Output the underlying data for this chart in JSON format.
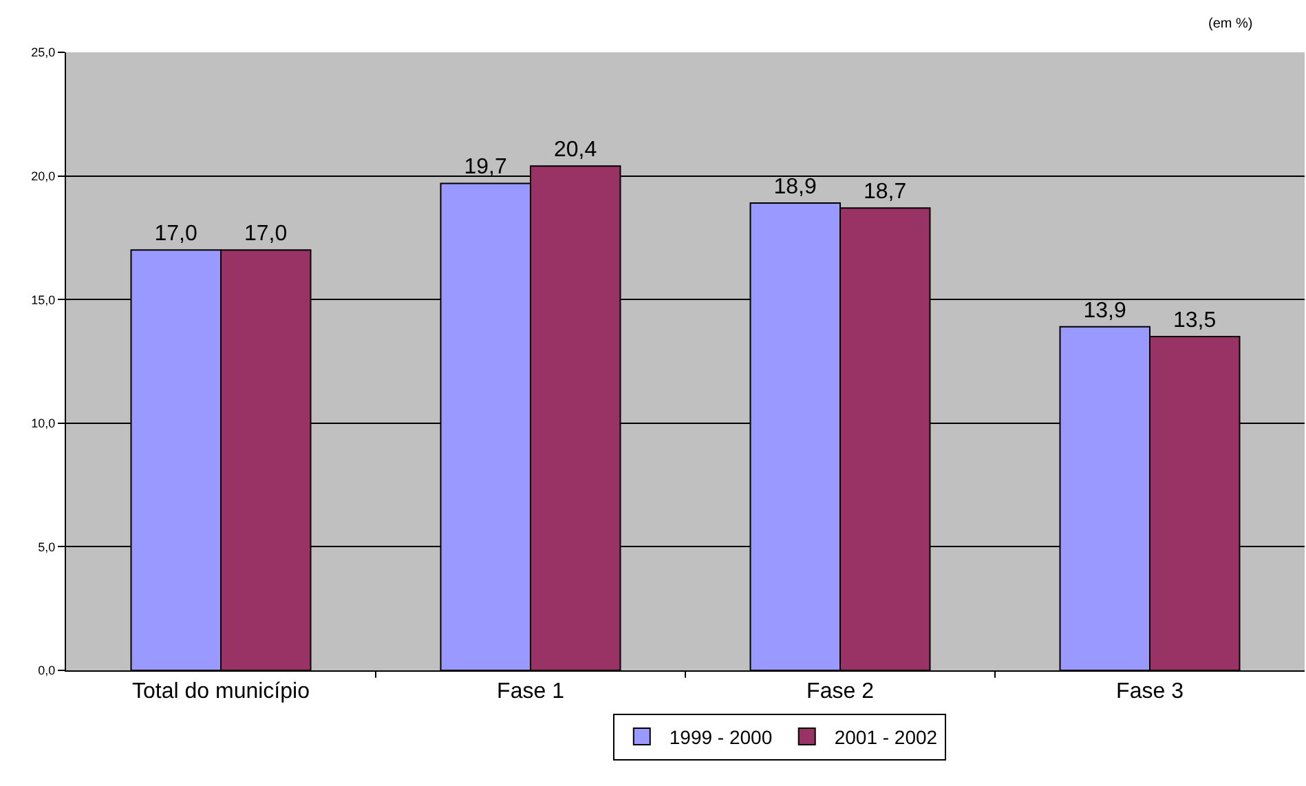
{
  "chart_data": {
    "type": "bar",
    "categories": [
      "Total do município",
      "Fase 1",
      "Fase 2",
      "Fase 3"
    ],
    "series": [
      {
        "name": "1999 - 2000",
        "color": "#9999ff",
        "values": [
          17.0,
          19.7,
          18.9,
          13.9
        ],
        "value_labels": [
          "17,0",
          "19,7",
          "18,9",
          "13,9"
        ]
      },
      {
        "name": "2001 - 2002",
        "color": "#993366",
        "values": [
          17.0,
          20.4,
          18.7,
          13.5
        ],
        "value_labels": [
          "17,0",
          "20,4",
          "18,7",
          "13,5"
        ]
      }
    ],
    "ylim": [
      0,
      25
    ],
    "yticks": [
      {
        "value": 0,
        "label": "0,0"
      },
      {
        "value": 5,
        "label": "5,0"
      },
      {
        "value": 10,
        "label": "10,0"
      },
      {
        "value": 15,
        "label": "15,0"
      },
      {
        "value": 20,
        "label": "20,0"
      },
      {
        "value": 25,
        "label": "25,0"
      }
    ],
    "grid": "y",
    "legend": "bottom",
    "annotations": [
      "(em %)"
    ]
  }
}
